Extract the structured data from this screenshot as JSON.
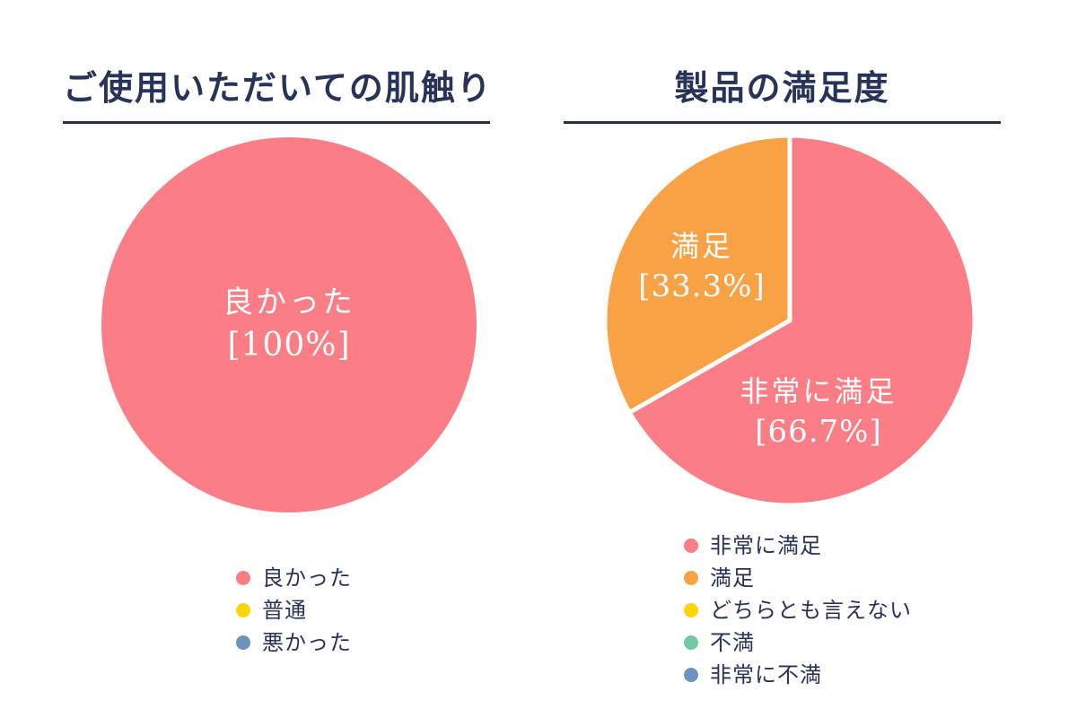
{
  "style": {
    "background": "#FFFFFF",
    "title_color": "#273358",
    "underline_color": "#22304F",
    "label_color_on_slice": "#FFFFFF"
  },
  "chart_data": [
    {
      "type": "pie",
      "title": "ご使用いただいての肌触り",
      "legend_position": "bottom",
      "slices": [
        {
          "label": "良かった",
          "value": 100,
          "color": "#FB7E87"
        }
      ],
      "center_label": {
        "name": "良かった",
        "pct": "[100%]"
      },
      "legend": [
        {
          "label": "良かった",
          "color": "#FB7E87"
        },
        {
          "label": "普通",
          "color": "#FFD500"
        },
        {
          "label": "悪かった",
          "color": "#6C93BD"
        }
      ]
    },
    {
      "type": "pie",
      "title": "製品の満足度",
      "legend_position": "bottom",
      "slices": [
        {
          "label": "非常に満足",
          "value": 66.7,
          "color": "#FB7E87"
        },
        {
          "label": "満足",
          "value": 33.3,
          "color": "#F9A145"
        }
      ],
      "slice_labels": [
        {
          "name": "非常に満足",
          "pct": "[66.7%]"
        },
        {
          "name": "満足",
          "pct": "[33.3%]"
        }
      ],
      "legend": [
        {
          "label": "非常に満足",
          "color": "#FB7E87"
        },
        {
          "label": "満足",
          "color": "#F9A145"
        },
        {
          "label": "どちらとも言えない",
          "color": "#FFD500"
        },
        {
          "label": "不満",
          "color": "#73C9A4"
        },
        {
          "label": "非常に不満",
          "color": "#6C93BD"
        }
      ]
    }
  ]
}
